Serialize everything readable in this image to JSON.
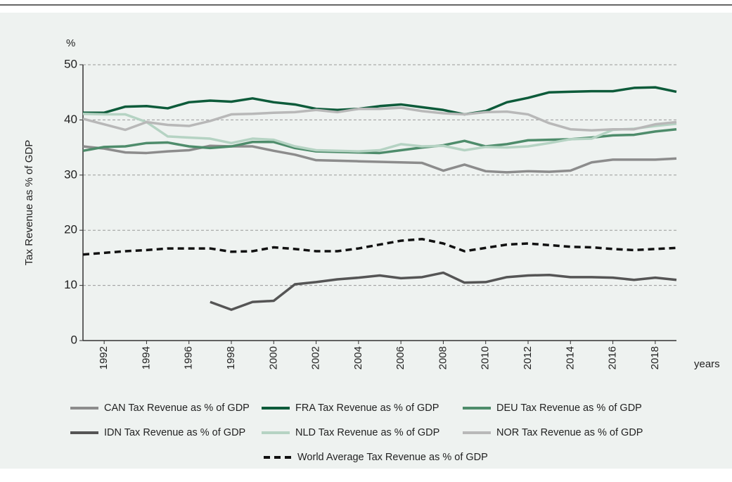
{
  "chart_data": {
    "type": "line",
    "y_unit": "%",
    "y_label": "Tax Revenue as % of GDP",
    "x_label": "years",
    "x": [
      1991,
      1992,
      1993,
      1994,
      1995,
      1996,
      1997,
      1998,
      1999,
      2000,
      2001,
      2002,
      2003,
      2004,
      2005,
      2006,
      2007,
      2008,
      2009,
      2010,
      2011,
      2012,
      2013,
      2014,
      2015,
      2016,
      2017,
      2018,
      2019
    ],
    "xlim": [
      1991,
      2019
    ],
    "xticks": [
      1992,
      1994,
      1996,
      1998,
      2000,
      2002,
      2004,
      2006,
      2008,
      2010,
      2012,
      2014,
      2016,
      2018
    ],
    "ylim": [
      0,
      50
    ],
    "yticks": [
      0,
      10,
      20,
      30,
      40,
      50
    ],
    "grid": true,
    "series": [
      {
        "name": "CAN Tax Revenue as % of GDP",
        "color": "#8c8c8c",
        "values": [
          35.2,
          34.8,
          34.1,
          34.0,
          34.3,
          34.5,
          35.3,
          35.2,
          35.2,
          34.4,
          33.7,
          32.7,
          32.6,
          32.5,
          32.4,
          32.3,
          32.2,
          30.8,
          31.9,
          30.7,
          30.5,
          30.7,
          30.6,
          30.8,
          32.3,
          32.8,
          32.8,
          32.8,
          33.0
        ]
      },
      {
        "name": "FRA Tax Revenue as % of GDP",
        "color": "#0d5b3a",
        "values": [
          41.3,
          41.3,
          42.4,
          42.5,
          42.1,
          43.2,
          43.5,
          43.3,
          43.9,
          43.2,
          42.8,
          42.0,
          41.8,
          42.0,
          42.5,
          42.8,
          42.3,
          41.8,
          41.0,
          41.6,
          43.2,
          44.0,
          45.0,
          45.1,
          45.2,
          45.2,
          45.8,
          45.9,
          45.1
        ]
      },
      {
        "name": "DEU Tax Revenue as % of GDP",
        "color": "#4e8c6b",
        "values": [
          34.4,
          35.1,
          35.2,
          35.8,
          35.9,
          35.2,
          34.9,
          35.2,
          36.0,
          36.0,
          34.9,
          34.3,
          34.2,
          34.1,
          34.0,
          34.5,
          35.0,
          35.4,
          36.2,
          35.2,
          35.6,
          36.3,
          36.4,
          36.5,
          36.8,
          37.2,
          37.3,
          37.9,
          38.3
        ]
      },
      {
        "name": "IDN Tax Revenue as % of GDP",
        "color": "#555555",
        "values": [
          null,
          null,
          null,
          null,
          null,
          null,
          7.0,
          5.6,
          7.0,
          7.2,
          10.2,
          10.6,
          11.1,
          11.4,
          11.8,
          11.3,
          11.5,
          12.3,
          10.5,
          10.6,
          11.5,
          11.8,
          11.9,
          11.5,
          11.5,
          11.4,
          11.0,
          11.4,
          11.0
        ]
      },
      {
        "name": "NLD Tax Revenue as % of GDP",
        "color": "#b5d3c3",
        "values": [
          41.1,
          41.0,
          41.0,
          39.6,
          37.0,
          36.8,
          36.6,
          35.8,
          36.6,
          36.4,
          35.2,
          34.5,
          34.4,
          34.3,
          34.5,
          35.6,
          35.2,
          35.3,
          34.5,
          35.1,
          35.0,
          35.2,
          35.8,
          36.5,
          36.6,
          38.2,
          38.4,
          38.9,
          39.3
        ]
      },
      {
        "name": "NOR Tax Revenue as % of GDP",
        "color": "#b8b8b8",
        "values": [
          40.2,
          39.2,
          38.2,
          39.6,
          39.1,
          38.9,
          39.8,
          41.0,
          41.1,
          41.3,
          41.4,
          41.8,
          41.4,
          42.0,
          42.0,
          42.2,
          41.6,
          41.2,
          41.0,
          41.4,
          41.5,
          41.0,
          39.4,
          38.3,
          38.1,
          38.3,
          38.3,
          39.2,
          39.6
        ]
      },
      {
        "name": "World Average Tax Revenue as % of GDP",
        "color": "#111111",
        "dashed": true,
        "values": [
          15.6,
          15.9,
          16.2,
          16.4,
          16.7,
          16.7,
          16.7,
          16.1,
          16.2,
          16.9,
          16.6,
          16.2,
          16.2,
          16.7,
          17.4,
          18.1,
          18.4,
          17.6,
          16.2,
          16.8,
          17.4,
          17.6,
          17.3,
          17.0,
          16.9,
          16.6,
          16.4,
          16.6,
          16.8
        ]
      }
    ]
  }
}
